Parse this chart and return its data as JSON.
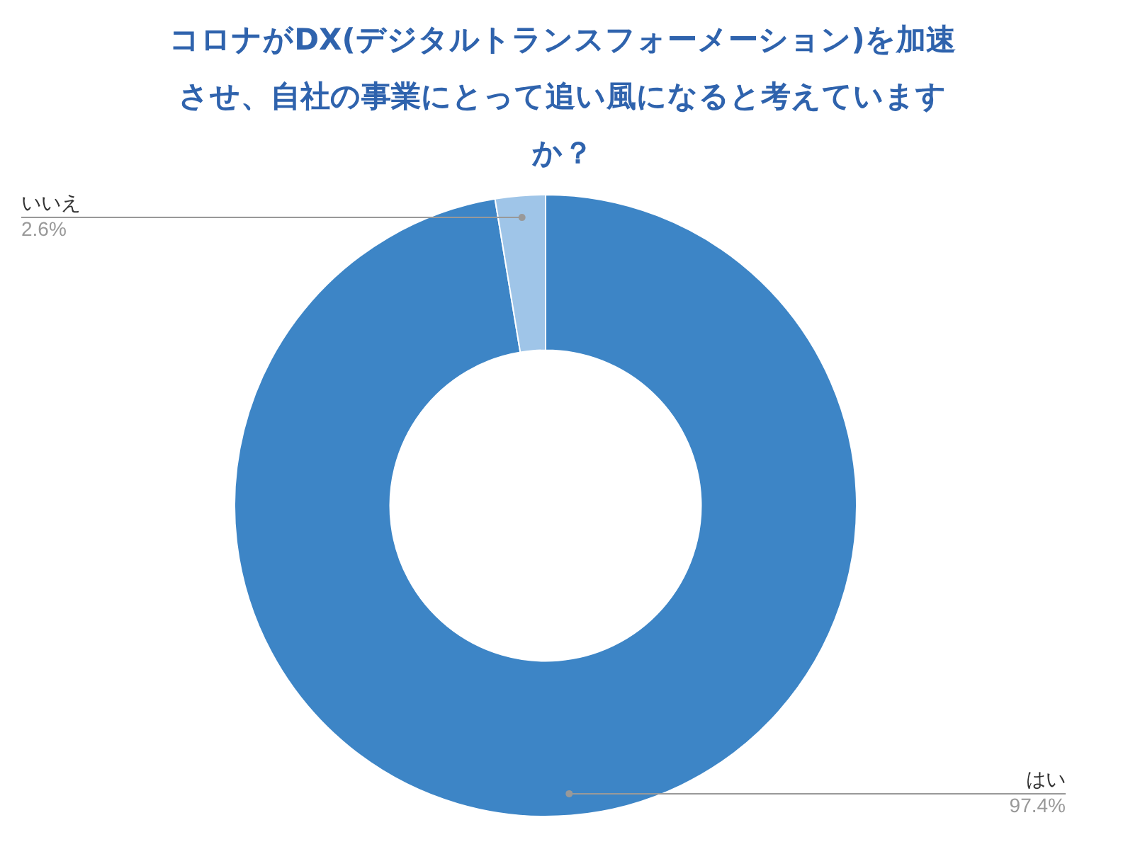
{
  "chart_data": {
    "type": "donut",
    "title": "コロナがDX(デジタルトランスフォーメーション)を加速させ、自社の事業にとって追い風になると考えていますか？",
    "categories": [
      "はい",
      "いいえ"
    ],
    "values": [
      97.4,
      2.6
    ],
    "colors": [
      "#3d85c6",
      "#9fc5e8"
    ],
    "value_labels": [
      "97.4%",
      "2.6%"
    ],
    "legend": false
  }
}
